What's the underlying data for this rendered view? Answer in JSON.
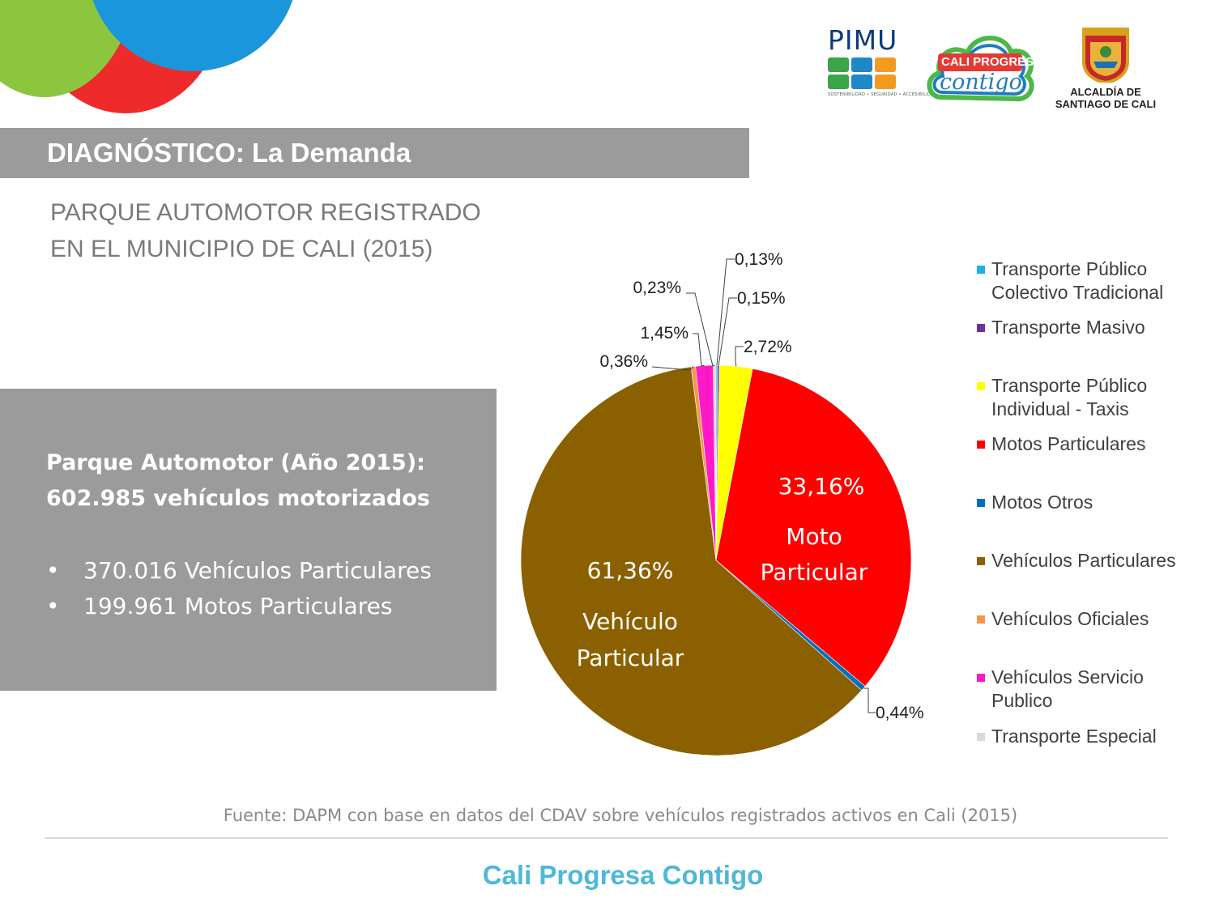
{
  "logos": {
    "pimu_text": "PIMU",
    "pimu_tagline": "SOSTENIBILIDAD • SEGURIDAD • ACCESIBILIDAD",
    "cali_cloud_line1": "CALI PROGRESA",
    "cali_cloud_line2": "contigo",
    "alcaldia_line1": "ALCALDÍA DE",
    "alcaldia_line2": "SANTIAGO DE CALI"
  },
  "header": {
    "title": "DIAGNÓSTICO: La Demanda"
  },
  "subtitle": {
    "line1": "PARQUE AUTOMOTOR REGISTRADO",
    "line2": "EN EL MUNICIPIO DE CALI (2015)"
  },
  "info_box": {
    "title_line1": "Parque Automotor (Año 2015):",
    "title_line2": "602.985 vehículos motorizados",
    "bullets": [
      {
        "marker": "•",
        "text": "370.016 Vehículos Particulares"
      },
      {
        "marker": "•",
        "text": "199.961 Motos Particulares"
      }
    ]
  },
  "chart_data": {
    "type": "pie",
    "title": "",
    "series": [
      {
        "name": "Transporte  Público Colectivo Tradicional",
        "value": 0.13,
        "label": "0,13%",
        "color": "#19b0e6"
      },
      {
        "name": "Transporte Masivo",
        "value": 0.15,
        "label": "0,15%",
        "color": "#7030a0"
      },
      {
        "name": "Transporte Público Individual - Taxis",
        "value": 2.72,
        "label": "2,72%",
        "color": "#ffff00"
      },
      {
        "name": "Motos Particulares",
        "value": 33.16,
        "label": "33,16%",
        "color": "#ff0000",
        "inner_caption": [
          "Moto",
          "Particular"
        ]
      },
      {
        "name": "Motos Otros",
        "value": 0.44,
        "label": "0,44%",
        "color": "#0070c0"
      },
      {
        "name": "Vehículos Particulares",
        "value": 61.36,
        "label": "61,36%",
        "color": "#8b6000",
        "inner_caption": [
          "Vehículo",
          "Particular"
        ]
      },
      {
        "name": "Vehículos Oficiales",
        "value": 0.36,
        "label": "0,36%",
        "color": "#f79646"
      },
      {
        "name": "Vehículos Servicio Publico",
        "value": 1.45,
        "label": "1,45%",
        "color": "#ff19c8"
      },
      {
        "name": "Transporte Especial",
        "value": 0.23,
        "label": "0,23%",
        "color": "#d9d9d9"
      }
    ],
    "legend": {
      "placement": "right",
      "items": [
        {
          "line1": "Transporte  Público",
          "line2": "Colectivo Tradicional",
          "color": "#19b0e6"
        },
        {
          "line1": "Transporte Masivo",
          "line2": "",
          "color": "#7030a0"
        },
        {
          "line1": "Transporte Público",
          "line2": "Individual - Taxis",
          "color": "#ffff00"
        },
        {
          "line1": "Motos Particulares",
          "line2": "",
          "color": "#ff0000"
        },
        {
          "line1": "Motos Otros",
          "line2": "",
          "color": "#0070c0"
        },
        {
          "line1": "Vehículos Particulares",
          "line2": "",
          "color": "#8b6000"
        },
        {
          "line1": "Vehículos Oficiales",
          "line2": "",
          "color": "#f79646"
        },
        {
          "line1": "Vehículos Servicio",
          "line2": "Publico",
          "color": "#ff19c8"
        },
        {
          "line1": "Transporte Especial",
          "line2": "",
          "color": "#d9d9d9"
        }
      ]
    }
  },
  "footer": {
    "source": "Fuente: DAPM con base en datos del CDAV sobre vehículos registrados activos en Cali (2015)",
    "brand": "Cali Progresa Contigo"
  },
  "colors": {
    "header_bar": "#9b9b9b",
    "corner_green": "#8cc63f",
    "corner_red": "#ee2a2a",
    "corner_blue": "#1a96dc",
    "brand_text": "#4db8d8"
  }
}
